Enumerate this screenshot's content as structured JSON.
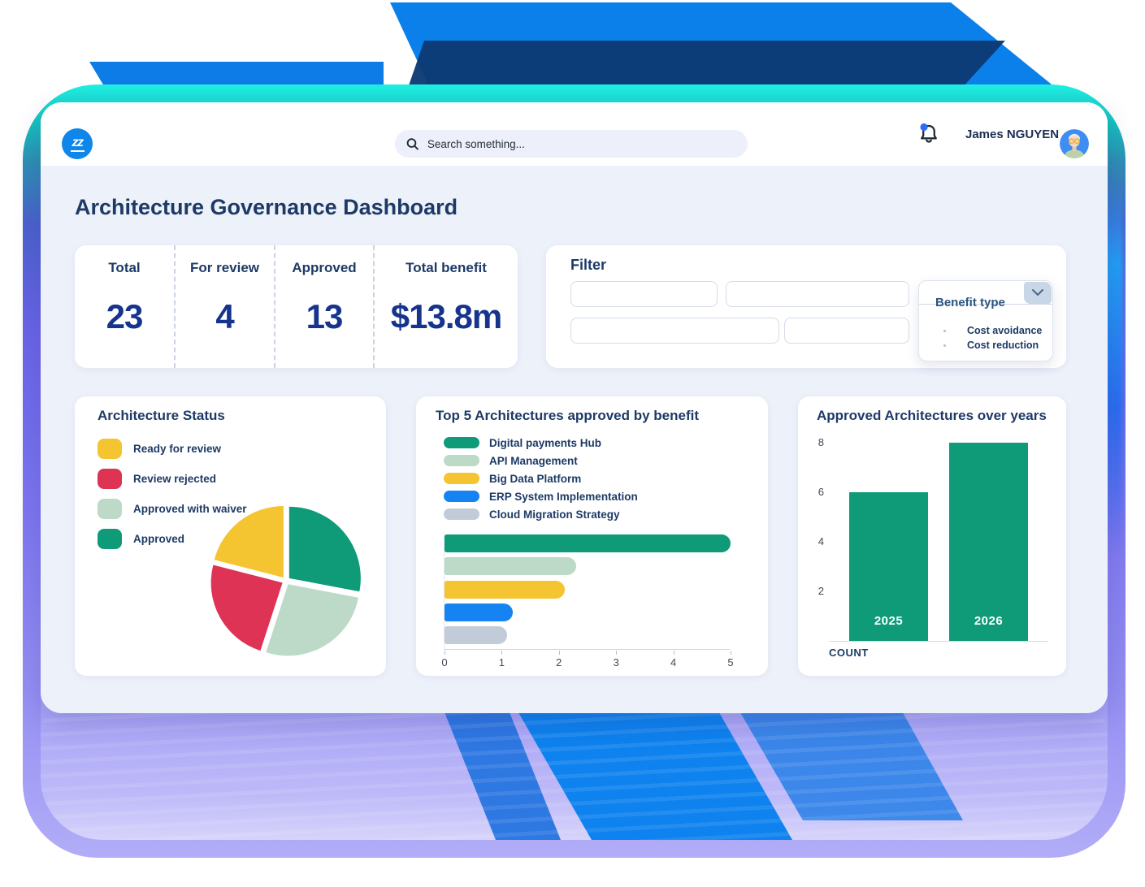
{
  "header": {
    "logo_text": "zz",
    "search_placeholder": "Search something...",
    "user_name": "James NGUYEN"
  },
  "page_title": "Architecture Governance Dashboard",
  "stats": {
    "items": [
      {
        "label": "Total",
        "value": "23"
      },
      {
        "label": "For review",
        "value": "4"
      },
      {
        "label": "Approved",
        "value": "13"
      },
      {
        "label": "Total benefit",
        "value": "$13.8m"
      }
    ]
  },
  "filter": {
    "title": "Filter",
    "inputs": [
      "",
      "",
      "",
      ""
    ],
    "dropdown": {
      "label": "Benefit type",
      "options": [
        "Cost avoidance",
        "Cost reduction"
      ]
    }
  },
  "theme": {
    "logo_blue": "#0F86EA",
    "accent_cyan": "#20F0E3",
    "frame_purple": "#7D76F0",
    "ribbon_blue": "#0B80EA",
    "ribbon_navy": "#0C3A72",
    "text_navy": "#1D3A66",
    "value_blue": "#16348C",
    "content_bg": "#EDF1FA"
  },
  "chart_data": [
    {
      "id": "architecture-status",
      "type": "pie",
      "title": "Architecture Status",
      "legend_position": "left",
      "values_unit": "percent",
      "items": [
        {
          "label": "Ready for review",
          "value": 21,
          "color": "#F5C431"
        },
        {
          "label": "Review rejected",
          "value": 24,
          "color": "#DE3355"
        },
        {
          "label": "Approved with waiver",
          "value": 27,
          "color": "#BDD9C7"
        },
        {
          "label": "Approved",
          "value": 28,
          "color": "#0F9B78"
        }
      ],
      "order_clockwise_from_top": [
        3,
        2,
        1,
        0
      ]
    },
    {
      "id": "top5-benefit",
      "type": "bar",
      "orientation": "horizontal",
      "title": "Top 5 Architectures approved by benefit",
      "categories": [
        "Digital payments Hub",
        "API Management",
        "Big Data Platform",
        "ERP System Implementation",
        "Cloud Migration Strategy"
      ],
      "values": [
        5,
        2.3,
        2.1,
        1.2,
        1.1
      ],
      "colors": [
        "#0F9B78",
        "#BDD9C7",
        "#F5C431",
        "#1583F2",
        "#C2CBD8"
      ],
      "xlim": [
        0,
        5
      ],
      "xticks": [
        0,
        1,
        2,
        3,
        4,
        5
      ],
      "grid": false,
      "legend_position": "top"
    },
    {
      "id": "approved-years",
      "type": "bar",
      "orientation": "vertical",
      "title": "Approved Architectures over years",
      "categories": [
        "2025",
        "2026"
      ],
      "values": [
        6,
        8
      ],
      "bar_color": "#0F9B78",
      "ylim": [
        0,
        8
      ],
      "yticks": [
        2,
        4,
        6,
        8
      ],
      "axis_label": "COUNT",
      "category_labels_inside_bars": true
    }
  ]
}
